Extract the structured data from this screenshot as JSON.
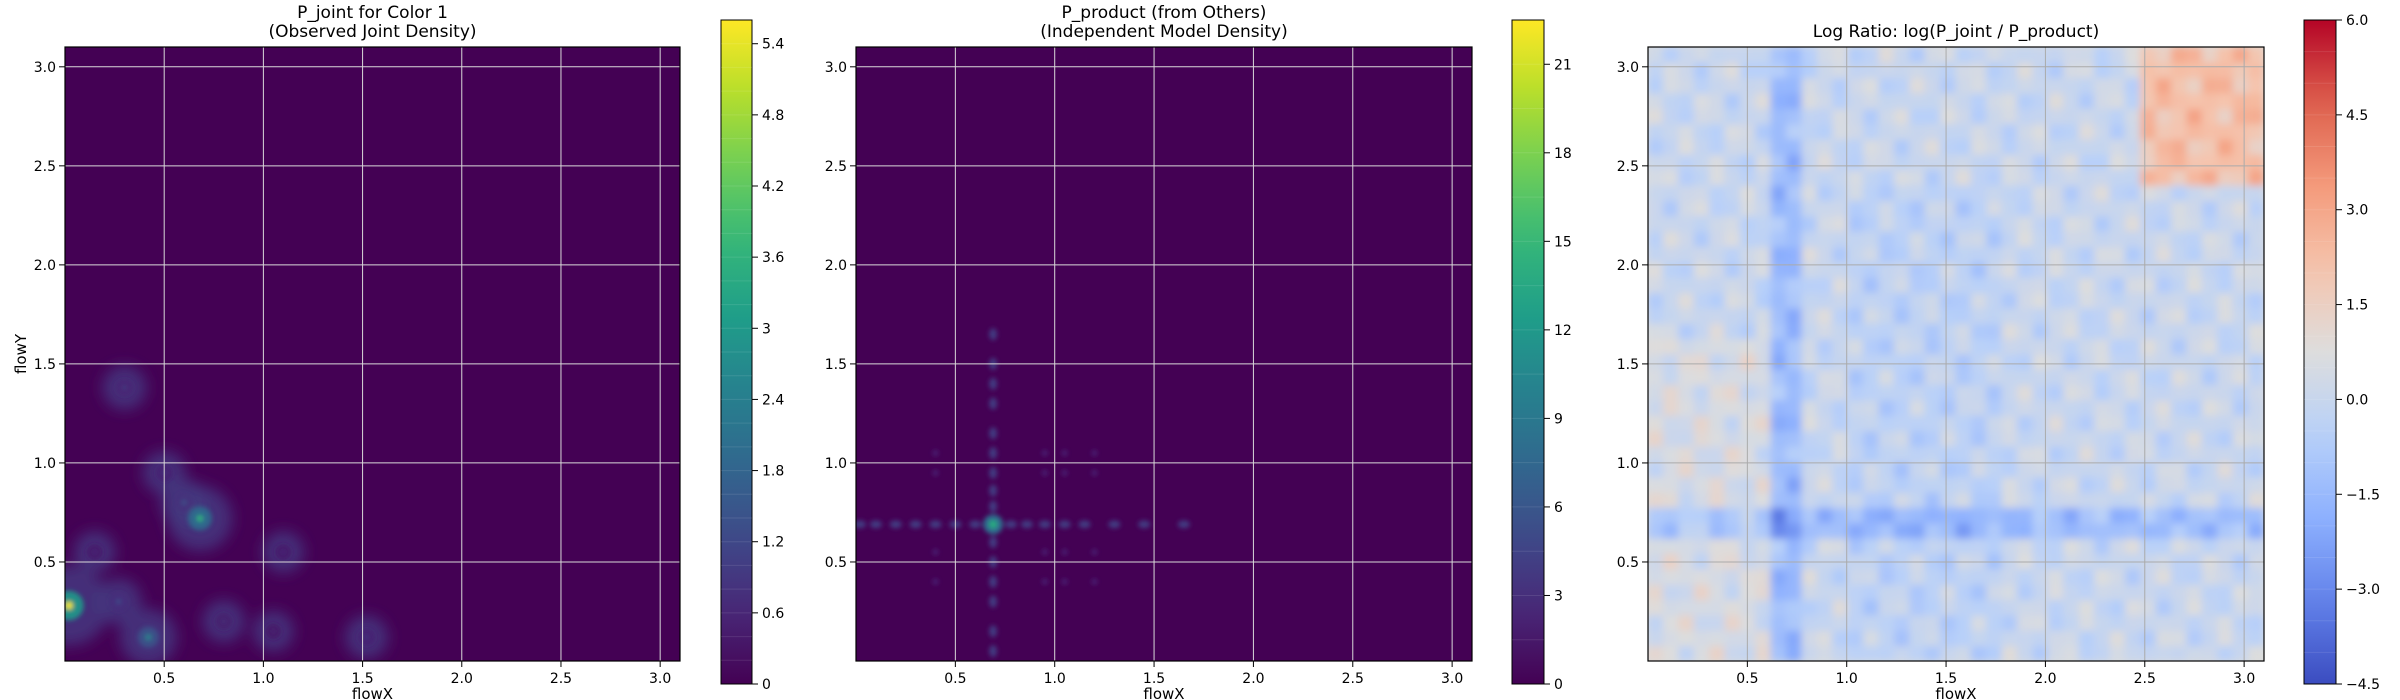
{
  "figure": {
    "panels": [
      {
        "title_line1": "P_joint for Color 1",
        "title_line2": "(Observed Joint Density)",
        "xlabel": "flowX",
        "ylabel": "flowY"
      },
      {
        "title_line1": "P_product (from Others)",
        "title_line2": "(Independent Model Density)",
        "xlabel": "flowX",
        "ylabel": ""
      },
      {
        "title_line1": "Log Ratio: log(P_joint / P_product)",
        "title_line2": "",
        "xlabel": "flowX",
        "ylabel": ""
      }
    ]
  },
  "colors": {
    "viridis_dark": "#440154",
    "viridis_mid": "#21918c",
    "viridis_bright": "#fde725",
    "coolwarm_blue": "#3b4cc0",
    "coolwarm_neutral": "#dddddd",
    "coolwarm_red": "#b40426",
    "grid": "#d9d9d9"
  },
  "chart_data": [
    {
      "type": "heatmap",
      "title": "P_joint for Color 1\n(Observed Joint Density)",
      "xlabel": "flowX",
      "ylabel": "flowY",
      "xlim": [
        0.0,
        3.1
      ],
      "ylim": [
        0.0,
        3.1
      ],
      "x_ticks": [
        0.5,
        1.0,
        1.5,
        2.0,
        2.5,
        3.0
      ],
      "y_ticks": [
        0.5,
        1.0,
        1.5,
        2.0,
        2.5,
        3.0
      ],
      "grid": true,
      "colormap": "viridis",
      "colorbar": {
        "min": 0.0,
        "max": 5.6,
        "ticks": [
          0.0,
          0.6,
          1.2,
          1.8,
          2.4,
          3.0,
          3.6,
          4.2,
          4.8,
          5.4
        ],
        "levels": 28
      },
      "peaks": [
        {
          "x": 0.02,
          "y": 0.28,
          "value": 5.5
        },
        {
          "x": 0.68,
          "y": 0.72,
          "value": 3.6
        },
        {
          "x": 0.42,
          "y": 0.12,
          "value": 2.6
        },
        {
          "x": 0.6,
          "y": 0.8,
          "value": 1.4
        },
        {
          "x": 0.27,
          "y": 0.3,
          "value": 1.3
        },
        {
          "x": 0.3,
          "y": 1.38,
          "value": 1.0
        },
        {
          "x": 0.5,
          "y": 0.95,
          "value": 0.9
        },
        {
          "x": 1.1,
          "y": 0.55,
          "value": 0.7
        },
        {
          "x": 1.52,
          "y": 0.12,
          "value": 0.9
        },
        {
          "x": 0.8,
          "y": 0.2,
          "value": 0.8
        },
        {
          "x": 0.15,
          "y": 0.55,
          "value": 0.7
        },
        {
          "x": 1.05,
          "y": 0.15,
          "value": 0.6
        }
      ]
    },
    {
      "type": "heatmap",
      "title": "P_product (from Others)\n(Independent Model Density)",
      "xlabel": "flowX",
      "ylabel": "",
      "xlim": [
        0.0,
        3.1
      ],
      "ylim": [
        0.0,
        3.1
      ],
      "x_ticks": [
        0.5,
        1.0,
        1.5,
        2.0,
        2.5,
        3.0
      ],
      "y_ticks": [
        0.5,
        1.0,
        1.5,
        2.0,
        2.5,
        3.0
      ],
      "grid": true,
      "colormap": "viridis",
      "colorbar": {
        "min": 0,
        "max": 22.5,
        "ticks": [
          0,
          3,
          6,
          9,
          12,
          15,
          18,
          21
        ],
        "levels": 15
      },
      "peaks": [
        {
          "x": 0.69,
          "y": 0.69,
          "value": 14.0
        }
      ]
    },
    {
      "type": "heatmap",
      "title": "Log Ratio: log(P_joint / P_product)",
      "xlabel": "flowX",
      "ylabel": "",
      "xlim": [
        0.0,
        3.1
      ],
      "ylim": [
        0.0,
        3.1
      ],
      "x_ticks": [
        0.5,
        1.0,
        1.5,
        2.0,
        2.5,
        3.0
      ],
      "y_ticks": [
        0.5,
        1.0,
        1.5,
        2.0,
        2.5,
        3.0
      ],
      "grid": true,
      "colormap": "coolwarm",
      "colorbar": {
        "min": -4.5,
        "max": 6.0,
        "ticks": [
          -4.5,
          -3.0,
          -1.5,
          0.0,
          1.5,
          3.0,
          4.5,
          6.0
        ],
        "tick_labels": [
          "−4.5",
          "−3.0",
          "−1.5",
          "0.0",
          "1.5",
          "3.0",
          "4.5",
          "6.0"
        ],
        "levels": 21
      },
      "regions": [
        {
          "x_range": [
            2.45,
            3.1
          ],
          "y_range": [
            2.4,
            3.1
          ],
          "value": 2.2
        },
        {
          "x_range": [
            0.65,
            0.75
          ],
          "y_range": [
            0.0,
            3.1
          ],
          "value": -1.4
        },
        {
          "x_range": [
            0.0,
            3.1
          ],
          "y_range": [
            0.65,
            0.75
          ],
          "value": -1.3
        }
      ]
    }
  ]
}
